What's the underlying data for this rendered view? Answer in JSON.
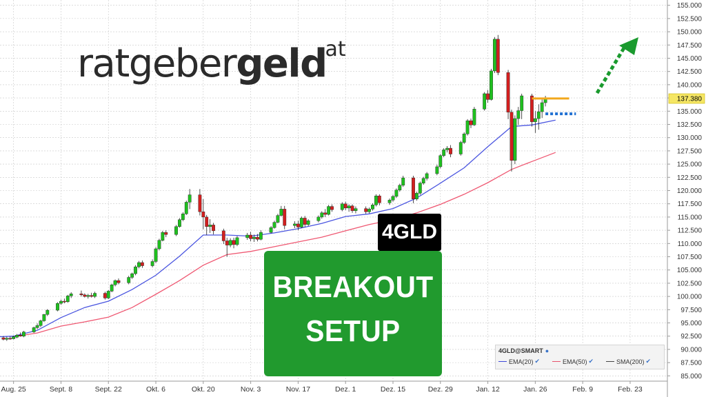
{
  "logo": {
    "part1": "ratgeber",
    "part2": "geld",
    "suffix": ".at"
  },
  "badge": {
    "ticker": "4GLD"
  },
  "setup": {
    "line1": "BREAKOUT",
    "line2": "SETUP"
  },
  "legend": {
    "title": "4GLD@SMART",
    "items": [
      {
        "label": "EMA(20)",
        "color": "#3d47d9"
      },
      {
        "label": "EMA(50)",
        "color": "#e8526b"
      },
      {
        "label": "SMA(200)",
        "color": "#444444"
      }
    ]
  },
  "colors": {
    "up": "#1fc01f",
    "down": "#d21f1f",
    "ema20": "#4a55e0",
    "ema50": "#ef5872",
    "resistance": "#f2a81c",
    "support": "#1f6fd1",
    "arrow": "#1a9a2e",
    "price_tag": "#f5e664"
  },
  "chart_data": {
    "type": "candlestick",
    "ylim": [
      84,
      156
    ],
    "y_ticks": [
      "155.000",
      "152.500",
      "150.000",
      "147.500",
      "145.000",
      "142.500",
      "140.000",
      "137.500",
      "135.000",
      "132.500",
      "130.000",
      "127.500",
      "125.000",
      "122.500",
      "120.000",
      "117.500",
      "115.000",
      "112.500",
      "110.000",
      "107.500",
      "105.000",
      "102.500",
      "100.000",
      "97.500",
      "95.000",
      "92.500",
      "90.000",
      "87.500",
      "85.000"
    ],
    "x_labels": [
      "Aug. 25",
      "Sept. 8",
      "Sept. 22",
      "Okt. 6",
      "Okt. 20",
      "Nov. 3",
      "Nov. 17",
      "Dez. 1",
      "Dez. 15",
      "Dez. 29",
      "Jan. 12",
      "Jan. 26",
      "Feb. 9",
      "Feb. 23"
    ],
    "x_label_days": [
      0,
      14,
      28,
      42,
      56,
      70,
      84,
      98,
      112,
      126,
      140,
      154,
      168,
      182
    ],
    "day_range": [
      -4,
      193
    ],
    "last_price": "137.380",
    "resistance_level": 137.4,
    "support_level": 134.5,
    "candles": [
      {
        "d": -3,
        "o": 92.2,
        "h": 92.5,
        "l": 91.7,
        "c": 91.9
      },
      {
        "d": -2,
        "o": 91.9,
        "h": 92.4,
        "l": 91.6,
        "c": 92.1
      },
      {
        "d": -1,
        "o": 92.1,
        "h": 92.5,
        "l": 91.8,
        "c": 92.0
      },
      {
        "d": 0,
        "o": 92.0,
        "h": 92.6,
        "l": 91.9,
        "c": 92.4
      },
      {
        "d": 1,
        "o": 92.3,
        "h": 92.9,
        "l": 92.1,
        "c": 92.7
      },
      {
        "d": 2,
        "o": 92.7,
        "h": 93.2,
        "l": 92.4,
        "c": 92.5
      },
      {
        "d": 3,
        "o": 92.5,
        "h": 93.5,
        "l": 92.3,
        "c": 93.3
      },
      {
        "d": 6,
        "o": 93.3,
        "h": 94.3,
        "l": 93.1,
        "c": 94.1
      },
      {
        "d": 7,
        "o": 94.1,
        "h": 94.9,
        "l": 93.8,
        "c": 94.5
      },
      {
        "d": 8,
        "o": 94.5,
        "h": 95.6,
        "l": 94.2,
        "c": 95.4
      },
      {
        "d": 9,
        "o": 95.4,
        "h": 96.7,
        "l": 95.2,
        "c": 96.6
      },
      {
        "d": 10,
        "o": 96.6,
        "h": 97.6,
        "l": 96.3,
        "c": 97.4
      },
      {
        "d": 13,
        "o": 97.4,
        "h": 98.9,
        "l": 97.2,
        "c": 98.7
      },
      {
        "d": 14,
        "o": 98.7,
        "h": 99.4,
        "l": 98.4,
        "c": 99.1
      },
      {
        "d": 15,
        "o": 99.1,
        "h": 99.6,
        "l": 98.7,
        "c": 99.0
      },
      {
        "d": 16,
        "o": 99.0,
        "h": 100.3,
        "l": 98.8,
        "c": 100.1
      },
      {
        "d": 17,
        "o": 100.1,
        "h": 100.8,
        "l": 99.7,
        "c": 100.5
      },
      {
        "d": 20,
        "o": 100.5,
        "h": 101.1,
        "l": 100.0,
        "c": 100.3
      },
      {
        "d": 21,
        "o": 100.3,
        "h": 100.6,
        "l": 99.8,
        "c": 100.0
      },
      {
        "d": 22,
        "o": 100.0,
        "h": 100.5,
        "l": 99.6,
        "c": 100.2
      },
      {
        "d": 23,
        "o": 100.2,
        "h": 100.7,
        "l": 99.8,
        "c": 100.0
      },
      {
        "d": 24,
        "o": 100.0,
        "h": 100.9,
        "l": 99.7,
        "c": 100.6
      },
      {
        "d": 27,
        "o": 100.6,
        "h": 100.9,
        "l": 99.4,
        "c": 99.7
      },
      {
        "d": 28,
        "o": 99.7,
        "h": 101.2,
        "l": 99.5,
        "c": 101.0
      },
      {
        "d": 29,
        "o": 101.0,
        "h": 102.4,
        "l": 100.8,
        "c": 102.2
      },
      {
        "d": 30,
        "o": 102.2,
        "h": 103.2,
        "l": 101.9,
        "c": 103.0
      },
      {
        "d": 31,
        "o": 103.0,
        "h": 103.4,
        "l": 102.3,
        "c": 102.6
      },
      {
        "d": 34,
        "o": 102.6,
        "h": 103.9,
        "l": 102.3,
        "c": 103.6
      },
      {
        "d": 35,
        "o": 103.6,
        "h": 104.5,
        "l": 103.3,
        "c": 104.3
      },
      {
        "d": 36,
        "o": 104.3,
        "h": 105.9,
        "l": 104.0,
        "c": 105.6
      },
      {
        "d": 37,
        "o": 105.6,
        "h": 106.7,
        "l": 105.3,
        "c": 106.4
      },
      {
        "d": 38,
        "o": 106.4,
        "h": 106.8,
        "l": 105.4,
        "c": 105.8
      },
      {
        "d": 41,
        "o": 105.8,
        "h": 107.0,
        "l": 105.5,
        "c": 106.6
      },
      {
        "d": 42,
        "o": 106.6,
        "h": 109.3,
        "l": 106.3,
        "c": 109.0
      },
      {
        "d": 43,
        "o": 109.0,
        "h": 110.9,
        "l": 108.7,
        "c": 110.6
      },
      {
        "d": 44,
        "o": 110.6,
        "h": 112.4,
        "l": 110.4,
        "c": 112.1
      },
      {
        "d": 45,
        "o": 112.1,
        "h": 112.5,
        "l": 111.2,
        "c": 111.7
      },
      {
        "d": 48,
        "o": 111.7,
        "h": 113.5,
        "l": 111.4,
        "c": 113.2
      },
      {
        "d": 49,
        "o": 113.2,
        "h": 114.8,
        "l": 113.0,
        "c": 114.5
      },
      {
        "d": 50,
        "o": 114.5,
        "h": 115.9,
        "l": 114.2,
        "c": 115.6
      },
      {
        "d": 51,
        "o": 115.6,
        "h": 118.1,
        "l": 115.4,
        "c": 117.8
      },
      {
        "d": 52,
        "o": 117.8,
        "h": 120.3,
        "l": 116.5,
        "c": 119.2
      },
      {
        "d": 55,
        "o": 119.2,
        "h": 120.3,
        "l": 115.3,
        "c": 116.0
      },
      {
        "d": 56,
        "o": 116.0,
        "h": 118.4,
        "l": 112.7,
        "c": 115.0
      },
      {
        "d": 57,
        "o": 115.0,
        "h": 115.4,
        "l": 111.6,
        "c": 113.2
      },
      {
        "d": 58,
        "o": 113.2,
        "h": 114.6,
        "l": 112.0,
        "c": 113.5
      },
      {
        "d": 59,
        "o": 113.5,
        "h": 113.9,
        "l": 111.7,
        "c": 112.4
      },
      {
        "d": 62,
        "o": 112.4,
        "h": 112.8,
        "l": 109.9,
        "c": 110.5
      },
      {
        "d": 63,
        "o": 110.5,
        "h": 111.1,
        "l": 107.5,
        "c": 109.7
      },
      {
        "d": 64,
        "o": 109.7,
        "h": 111.0,
        "l": 109.3,
        "c": 110.6
      },
      {
        "d": 65,
        "o": 110.6,
        "h": 111.1,
        "l": 109.1,
        "c": 109.8
      },
      {
        "d": 66,
        "o": 109.8,
        "h": 111.4,
        "l": 109.5,
        "c": 111.1
      },
      {
        "d": 69,
        "o": 111.1,
        "h": 112.0,
        "l": 110.7,
        "c": 111.6
      },
      {
        "d": 70,
        "o": 111.6,
        "h": 112.2,
        "l": 110.4,
        "c": 110.9
      },
      {
        "d": 71,
        "o": 110.9,
        "h": 111.7,
        "l": 110.3,
        "c": 111.2
      },
      {
        "d": 72,
        "o": 111.2,
        "h": 111.8,
        "l": 110.4,
        "c": 110.8
      },
      {
        "d": 73,
        "o": 110.8,
        "h": 112.5,
        "l": 110.6,
        "c": 112.1
      },
      {
        "d": 76,
        "o": 112.1,
        "h": 113.3,
        "l": 111.9,
        "c": 113.0
      },
      {
        "d": 77,
        "o": 113.0,
        "h": 114.3,
        "l": 112.8,
        "c": 114.0
      },
      {
        "d": 78,
        "o": 114.0,
        "h": 115.6,
        "l": 113.8,
        "c": 115.3
      },
      {
        "d": 79,
        "o": 115.3,
        "h": 117.1,
        "l": 115.1,
        "c": 116.5
      },
      {
        "d": 80,
        "o": 116.5,
        "h": 117.1,
        "l": 112.7,
        "c": 113.4
      },
      {
        "d": 83,
        "o": 113.4,
        "h": 114.2,
        "l": 112.9,
        "c": 113.7
      },
      {
        "d": 84,
        "o": 113.7,
        "h": 114.3,
        "l": 112.5,
        "c": 113.1
      },
      {
        "d": 85,
        "o": 113.1,
        "h": 115.1,
        "l": 112.9,
        "c": 114.8
      },
      {
        "d": 86,
        "o": 114.8,
        "h": 115.2,
        "l": 113.1,
        "c": 113.6
      },
      {
        "d": 87,
        "o": 113.6,
        "h": 114.6,
        "l": 113.3,
        "c": 114.3
      },
      {
        "d": 90,
        "o": 114.3,
        "h": 115.3,
        "l": 114.0,
        "c": 115.0
      },
      {
        "d": 91,
        "o": 115.0,
        "h": 116.1,
        "l": 114.7,
        "c": 115.8
      },
      {
        "d": 92,
        "o": 115.8,
        "h": 116.5,
        "l": 115.0,
        "c": 115.5
      },
      {
        "d": 93,
        "o": 115.5,
        "h": 117.3,
        "l": 115.3,
        "c": 117.0
      },
      {
        "d": 94,
        "o": 117.0,
        "h": 117.4,
        "l": 116.0,
        "c": 116.4
      },
      {
        "d": 97,
        "o": 116.4,
        "h": 117.8,
        "l": 116.1,
        "c": 117.5
      },
      {
        "d": 98,
        "o": 117.5,
        "h": 117.9,
        "l": 116.3,
        "c": 116.7
      },
      {
        "d": 99,
        "o": 116.7,
        "h": 117.4,
        "l": 116.0,
        "c": 117.1
      },
      {
        "d": 100,
        "o": 117.1,
        "h": 117.4,
        "l": 115.8,
        "c": 116.2
      },
      {
        "d": 101,
        "o": 116.2,
        "h": 117.0,
        "l": 115.7,
        "c": 116.6
      },
      {
        "d": 104,
        "o": 116.6,
        "h": 117.0,
        "l": 115.6,
        "c": 116.0
      },
      {
        "d": 105,
        "o": 116.0,
        "h": 116.8,
        "l": 115.7,
        "c": 116.5
      },
      {
        "d": 106,
        "o": 116.5,
        "h": 117.6,
        "l": 116.2,
        "c": 117.3
      },
      {
        "d": 107,
        "o": 117.3,
        "h": 119.3,
        "l": 117.0,
        "c": 119.0
      },
      {
        "d": 108,
        "o": 119.0,
        "h": 119.3,
        "l": 117.2,
        "c": 117.7
      },
      {
        "d": 111,
        "o": 117.7,
        "h": 118.5,
        "l": 117.3,
        "c": 118.2
      },
      {
        "d": 112,
        "o": 118.2,
        "h": 119.2,
        "l": 117.9,
        "c": 118.9
      },
      {
        "d": 113,
        "o": 118.9,
        "h": 120.4,
        "l": 118.6,
        "c": 120.1
      },
      {
        "d": 114,
        "o": 120.1,
        "h": 121.3,
        "l": 119.8,
        "c": 121.0
      },
      {
        "d": 115,
        "o": 121.0,
        "h": 122.8,
        "l": 120.7,
        "c": 122.4
      },
      {
        "d": 118,
        "o": 122.4,
        "h": 122.8,
        "l": 117.6,
        "c": 118.4
      },
      {
        "d": 119,
        "o": 118.4,
        "h": 119.8,
        "l": 118.1,
        "c": 119.5
      },
      {
        "d": 120,
        "o": 119.5,
        "h": 121.7,
        "l": 119.2,
        "c": 121.4
      },
      {
        "d": 121,
        "o": 121.4,
        "h": 122.6,
        "l": 121.1,
        "c": 122.3
      },
      {
        "d": 122,
        "o": 122.3,
        "h": 123.5,
        "l": 121.9,
        "c": 123.2
      },
      {
        "d": 125,
        "o": 123.2,
        "h": 124.9,
        "l": 122.9,
        "c": 124.5
      },
      {
        "d": 126,
        "o": 124.5,
        "h": 126.9,
        "l": 124.2,
        "c": 126.6
      },
      {
        "d": 127,
        "o": 126.6,
        "h": 128.0,
        "l": 126.3,
        "c": 127.7
      },
      {
        "d": 128,
        "o": 127.7,
        "h": 128.4,
        "l": 127.2,
        "c": 128.0
      },
      {
        "d": 129,
        "o": 128.0,
        "h": 128.6,
        "l": 126.3,
        "c": 126.9
      },
      {
        "d": 132,
        "o": 126.9,
        "h": 129.4,
        "l": 126.6,
        "c": 129.1
      },
      {
        "d": 133,
        "o": 129.1,
        "h": 131.0,
        "l": 128.8,
        "c": 130.7
      },
      {
        "d": 134,
        "o": 130.7,
        "h": 133.5,
        "l": 130.4,
        "c": 133.2
      },
      {
        "d": 135,
        "o": 133.2,
        "h": 133.6,
        "l": 131.8,
        "c": 132.4
      },
      {
        "d": 136,
        "o": 132.4,
        "h": 135.8,
        "l": 132.2,
        "c": 135.4
      },
      {
        "d": 139,
        "o": 135.4,
        "h": 138.6,
        "l": 135.1,
        "c": 138.3
      },
      {
        "d": 140,
        "o": 138.3,
        "h": 139.0,
        "l": 136.6,
        "c": 137.2
      },
      {
        "d": 141,
        "o": 137.2,
        "h": 143.0,
        "l": 137.0,
        "c": 142.6
      },
      {
        "d": 142,
        "o": 142.6,
        "h": 149.0,
        "l": 142.2,
        "c": 148.6
      },
      {
        "d": 143,
        "o": 148.6,
        "h": 149.4,
        "l": 141.8,
        "c": 142.3
      },
      {
        "d": 146,
        "o": 142.3,
        "h": 142.8,
        "l": 133.5,
        "c": 134.8
      },
      {
        "d": 147,
        "o": 134.8,
        "h": 135.3,
        "l": 123.6,
        "c": 125.7
      },
      {
        "d": 148,
        "o": 125.7,
        "h": 134.2,
        "l": 125.0,
        "c": 133.6
      },
      {
        "d": 149,
        "o": 133.6,
        "h": 135.8,
        "l": 132.4,
        "c": 135.1
      },
      {
        "d": 150,
        "o": 135.1,
        "h": 138.3,
        "l": 133.5,
        "c": 137.9
      },
      {
        "d": 153,
        "o": 137.9,
        "h": 138.3,
        "l": 132.1,
        "c": 133.0
      },
      {
        "d": 154,
        "o": 133.0,
        "h": 135.0,
        "l": 130.9,
        "c": 133.6
      },
      {
        "d": 155,
        "o": 133.6,
        "h": 136.3,
        "l": 131.5,
        "c": 134.9
      },
      {
        "d": 156,
        "o": 134.9,
        "h": 137.2,
        "l": 133.7,
        "c": 136.6
      },
      {
        "d": 157,
        "o": 136.6,
        "h": 137.9,
        "l": 135.9,
        "c": 137.4
      }
    ],
    "ema20": [
      [
        -4,
        92.4
      ],
      [
        0,
        92.5
      ],
      [
        7,
        93.6
      ],
      [
        14,
        96.0
      ],
      [
        21,
        97.9
      ],
      [
        28,
        99.1
      ],
      [
        35,
        101.3
      ],
      [
        42,
        104.0
      ],
      [
        49,
        107.6
      ],
      [
        56,
        111.6
      ],
      [
        63,
        111.6
      ],
      [
        70,
        111.4
      ],
      [
        77,
        112.0
      ],
      [
        84,
        112.8
      ],
      [
        91,
        113.8
      ],
      [
        98,
        115.1
      ],
      [
        105,
        115.6
      ],
      [
        112,
        116.6
      ],
      [
        119,
        118.6
      ],
      [
        126,
        121.4
      ],
      [
        133,
        124.3
      ],
      [
        140,
        128.3
      ],
      [
        147,
        132.1
      ],
      [
        153,
        132.4
      ],
      [
        160,
        133.3
      ]
    ],
    "ema50": [
      [
        0,
        92.4
      ],
      [
        7,
        93.1
      ],
      [
        14,
        94.4
      ],
      [
        21,
        95.2
      ],
      [
        28,
        96.1
      ],
      [
        35,
        97.9
      ],
      [
        42,
        100.4
      ],
      [
        49,
        103.0
      ],
      [
        56,
        105.9
      ],
      [
        63,
        107.9
      ],
      [
        70,
        108.5
      ],
      [
        77,
        109.4
      ],
      [
        84,
        110.3
      ],
      [
        91,
        111.2
      ],
      [
        98,
        112.4
      ],
      [
        105,
        113.6
      ],
      [
        112,
        114.5
      ],
      [
        119,
        115.8
      ],
      [
        126,
        117.4
      ],
      [
        133,
        119.3
      ],
      [
        140,
        121.5
      ],
      [
        147,
        124.0
      ],
      [
        153,
        125.5
      ],
      [
        160,
        127.2
      ]
    ]
  }
}
